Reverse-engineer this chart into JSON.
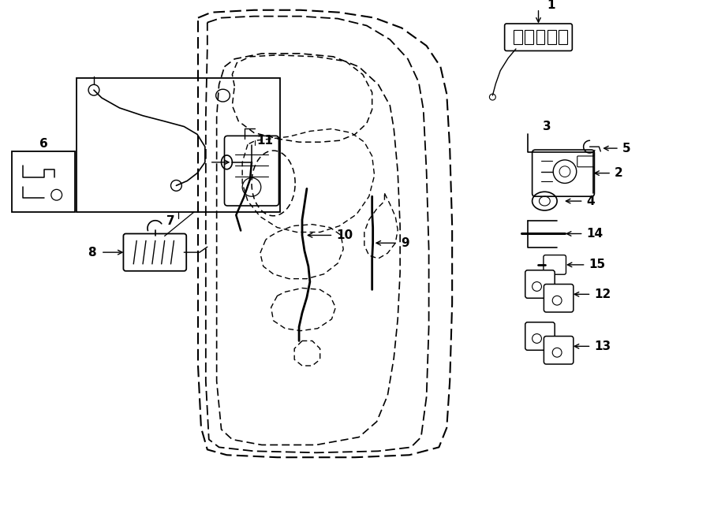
{
  "bg_color": "#ffffff",
  "lc": "#000000",
  "fig_w": 9.0,
  "fig_h": 6.61,
  "dpi": 100,
  "door_outer1": {
    "x": [
      3.35,
      3.1,
      2.85,
      2.65,
      2.48,
      2.38,
      2.32,
      2.3,
      2.35,
      2.48,
      2.68,
      2.95,
      3.28,
      3.62,
      3.95,
      4.22,
      4.45,
      4.62,
      4.72,
      4.75,
      4.72,
      4.65,
      4.55,
      4.45,
      4.4
    ],
    "y": [
      6.42,
      6.5,
      6.52,
      6.5,
      6.42,
      6.28,
      6.08,
      5.82,
      5.55,
      5.3,
      5.1,
      4.95,
      4.85,
      4.8,
      4.78,
      4.8,
      4.85,
      4.92,
      5.02,
      5.15,
      5.3,
      5.45,
      5.58,
      5.7,
      5.82
    ]
  },
  "door_outer2": {
    "x": [
      4.4,
      4.42,
      4.48,
      4.55,
      4.58
    ],
    "y": [
      5.82,
      5.98,
      6.15,
      6.3,
      6.42
    ]
  },
  "label_fontsize": 11,
  "bold": true
}
